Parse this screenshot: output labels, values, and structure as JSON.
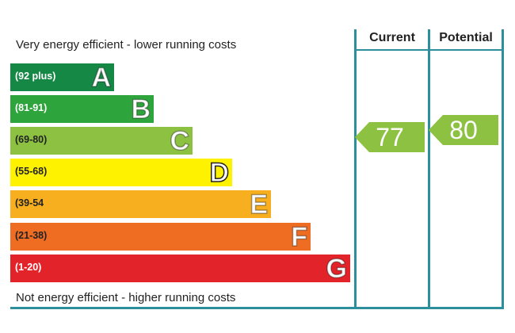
{
  "header_top": "Very energy efficient - lower running costs",
  "header_bottom": "Not energy efficient - higher running costs",
  "columns": {
    "current": "Current",
    "potential": "Potential"
  },
  "chart_data": {
    "type": "bar",
    "categories": [
      "A",
      "B",
      "C",
      "D",
      "E",
      "F",
      "G"
    ],
    "ranges": [
      "(92 plus)",
      "(81-91)",
      "(69-80)",
      "(55-68)",
      "(39-54",
      "(21-38)",
      "(1-20)"
    ],
    "colors": [
      "#158845",
      "#2ea43c",
      "#8cc142",
      "#fff200",
      "#f7ae1f",
      "#ef6c23",
      "#e3232a"
    ],
    "range_colors": [
      "#ffffff",
      "#ffffff",
      "#222222",
      "#222222",
      "#222222",
      "#222222",
      "#ffffff"
    ],
    "current": {
      "value": 77,
      "band": "C",
      "color": "#8cc142"
    },
    "potential": {
      "value": 80,
      "band": "C",
      "color": "#8cc142"
    }
  }
}
